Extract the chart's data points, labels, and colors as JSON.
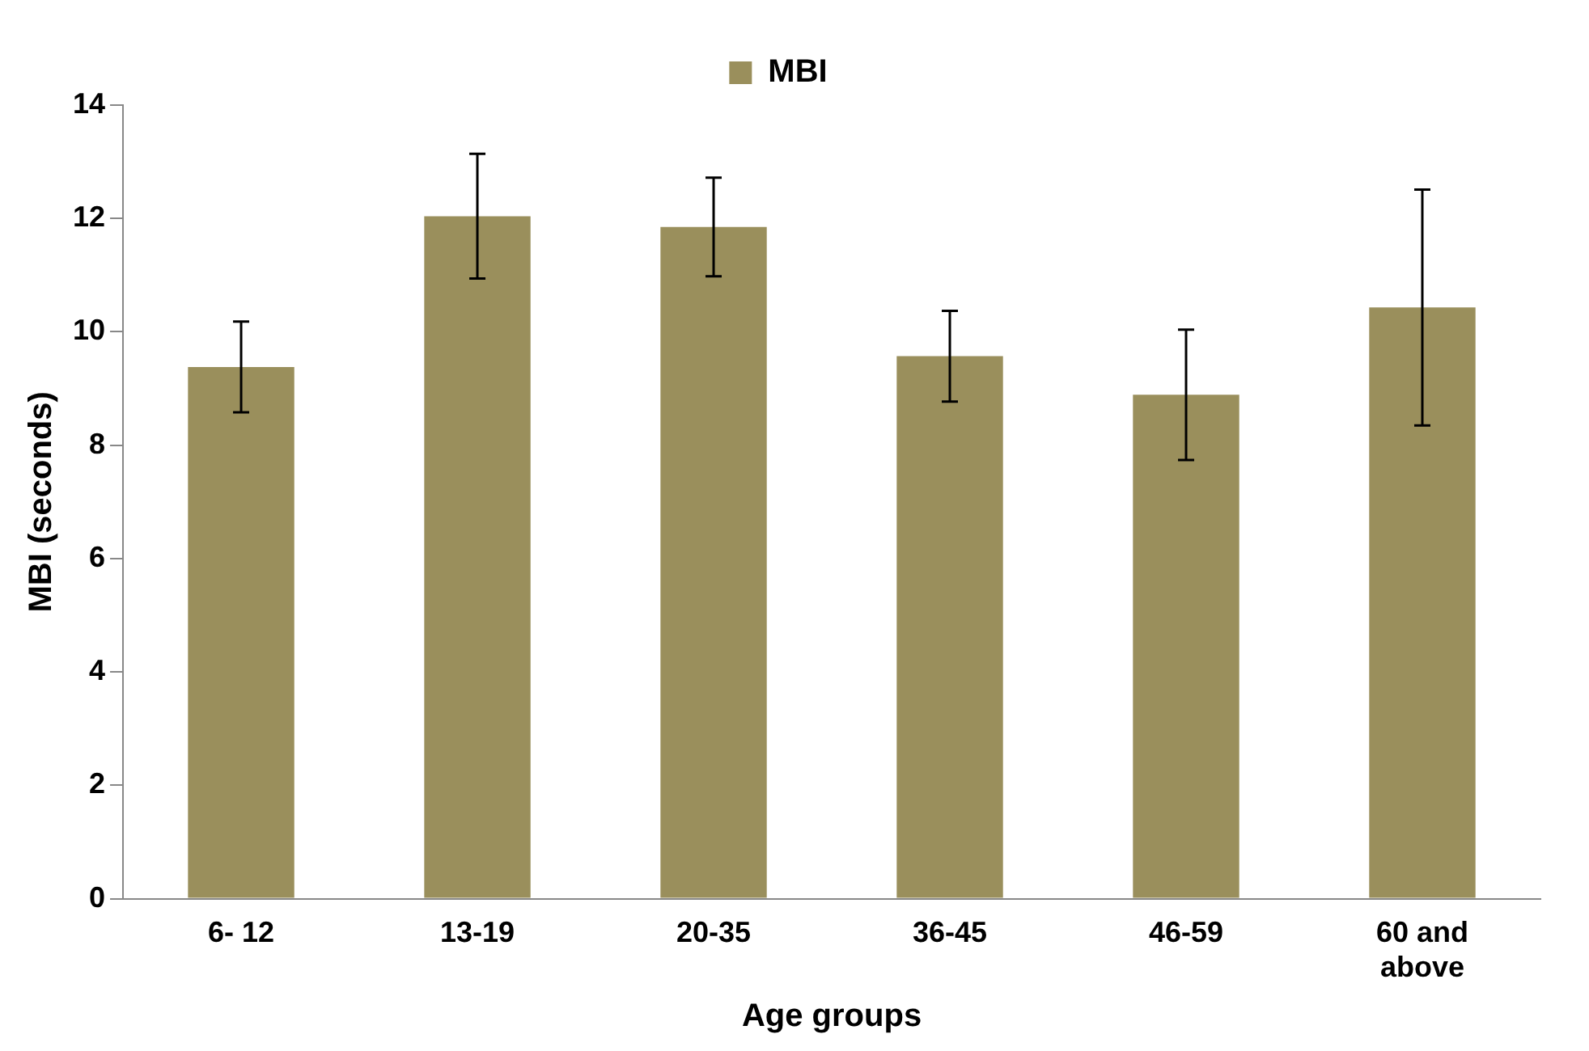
{
  "chart_data": {
    "type": "bar",
    "xlabel": "Age groups",
    "ylabel": "MBI (seconds)",
    "categories": [
      "6- 12",
      "13-19",
      "20-35",
      "36-45",
      "46-59",
      "60 and above"
    ],
    "series": [
      {
        "name": "MBI",
        "color": "#9a8f5c",
        "values": [
          9.38,
          12.04,
          11.85,
          9.57,
          8.89,
          10.43
        ],
        "errors": [
          0.8,
          1.1,
          0.87,
          0.8,
          1.15,
          2.08
        ]
      }
    ],
    "ylim": [
      0,
      14
    ],
    "yticks": [
      0,
      2,
      4,
      6,
      8,
      10,
      12,
      14
    ],
    "grid": false,
    "legend": "top"
  }
}
